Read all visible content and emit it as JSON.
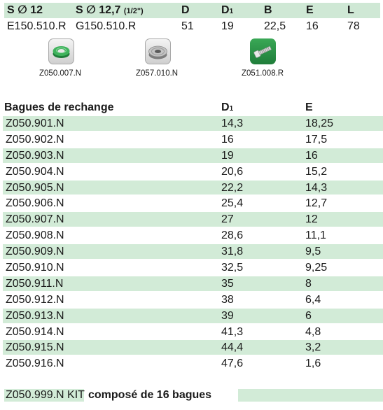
{
  "spec_table": {
    "headers": {
      "s12": "S ∅ 12",
      "s127": "S ∅ 12,7",
      "s127_inch": "(1/2\")",
      "d": "D",
      "d1_main": "D",
      "d1_sub": "1",
      "b": "B",
      "e": "E",
      "l": "L"
    },
    "row": {
      "s12": "E150.510.R",
      "s127": "G150.510.R",
      "d": "51",
      "d1": "19",
      "b": "22,5",
      "e": "16",
      "l": "78"
    }
  },
  "accessories": [
    {
      "code": "Z050.007.N",
      "icon": "green-ring-icon"
    },
    {
      "code": "Z057.010.N",
      "icon": "metal-washer-icon"
    },
    {
      "code": "Z051.008.R",
      "icon": "screw-icon"
    }
  ],
  "rings": {
    "title": "Bagues de rechange",
    "col_d1_main": "D",
    "col_d1_sub": "1",
    "col_e": "E",
    "rows": [
      {
        "ref": "Z050.901.N",
        "d1": "14,3",
        "e": "18,25"
      },
      {
        "ref": "Z050.902.N",
        "d1": "16",
        "e": "17,5"
      },
      {
        "ref": "Z050.903.N",
        "d1": "19",
        "e": "16"
      },
      {
        "ref": "Z050.904.N",
        "d1": "20,6",
        "e": "15,2"
      },
      {
        "ref": "Z050.905.N",
        "d1": "22,2",
        "e": "14,3"
      },
      {
        "ref": "Z050.906.N",
        "d1": "25,4",
        "e": "12,7"
      },
      {
        "ref": "Z050.907.N",
        "d1": "27",
        "e": "12"
      },
      {
        "ref": "Z050.908.N",
        "d1": "28,6",
        "e": "11,1"
      },
      {
        "ref": "Z050.909.N",
        "d1": "31,8",
        "e": "9,5"
      },
      {
        "ref": "Z050.910.N",
        "d1": "32,5",
        "e": "9,25"
      },
      {
        "ref": "Z050.911.N",
        "d1": "35",
        "e": "8"
      },
      {
        "ref": "Z050.912.N",
        "d1": "38",
        "e": "6,4"
      },
      {
        "ref": "Z050.913.N",
        "d1": "39",
        "e": "6"
      },
      {
        "ref": "Z050.914.N",
        "d1": "41,3",
        "e": "4,8"
      },
      {
        "ref": "Z050.915.N",
        "d1": "44,4",
        "e": "3,2"
      },
      {
        "ref": "Z050.916.N",
        "d1": "47,6",
        "e": "1,6"
      }
    ]
  },
  "kit": {
    "code": "Z050.999.N KIT",
    "description": "composé de 16 bagues"
  },
  "colors": {
    "band_green": "#d2ebd7",
    "icon_green": "#2e9a4d"
  }
}
